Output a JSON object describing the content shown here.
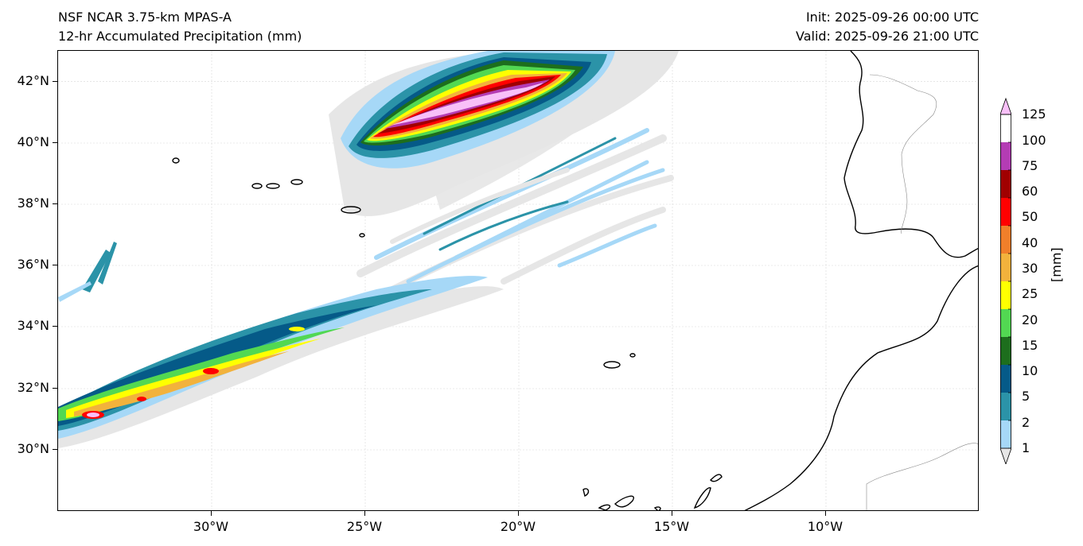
{
  "header": {
    "model_title": "NSF NCAR 3.75-km MPAS-A",
    "field_title": "12-hr Accumulated Precipitation (mm)",
    "init_time": "Init: 2025-09-26 00:00 UTC",
    "valid_time": "Valid: 2025-09-26 21:00 UTC"
  },
  "map": {
    "lon_range": [
      -35,
      -5
    ],
    "lat_range": [
      28,
      43
    ],
    "lat_ticks": [
      {
        "value": 42,
        "label": "42°N"
      },
      {
        "value": 40,
        "label": "40°N"
      },
      {
        "value": 38,
        "label": "38°N"
      },
      {
        "value": 36,
        "label": "36°N"
      },
      {
        "value": 34,
        "label": "34°N"
      },
      {
        "value": 32,
        "label": "32°N"
      },
      {
        "value": 30,
        "label": "30°N"
      }
    ],
    "lon_ticks": [
      {
        "value": -30,
        "label": "30°W"
      },
      {
        "value": -25,
        "label": "25°W"
      },
      {
        "value": -20,
        "label": "20°W"
      },
      {
        "value": -15,
        "label": "15°W"
      },
      {
        "value": -10,
        "label": "10°W"
      }
    ],
    "gridlines": true
  },
  "colorbar": {
    "unit_label": "[mm]",
    "levels": [
      {
        "label": "1",
        "color": "#e6e6e6"
      },
      {
        "label": "2",
        "color": "#a6d8f7"
      },
      {
        "label": "5",
        "color": "#2b93a8"
      },
      {
        "label": "10",
        "color": "#055a88"
      },
      {
        "label": "15",
        "color": "#1d6e1d"
      },
      {
        "label": "20",
        "color": "#52d852"
      },
      {
        "label": "25",
        "color": "#ffff00"
      },
      {
        "label": "30",
        "color": "#f2b23c"
      },
      {
        "label": "40",
        "color": "#f07f2a"
      },
      {
        "label": "50",
        "color": "#ff0000"
      },
      {
        "label": "60",
        "color": "#a00000"
      },
      {
        "label": "75",
        "color": "#b43cb4"
      },
      {
        "label": "100",
        "color": "#f8c0f8"
      },
      {
        "label": "125",
        "color": ""
      }
    ],
    "extend": "both"
  }
}
